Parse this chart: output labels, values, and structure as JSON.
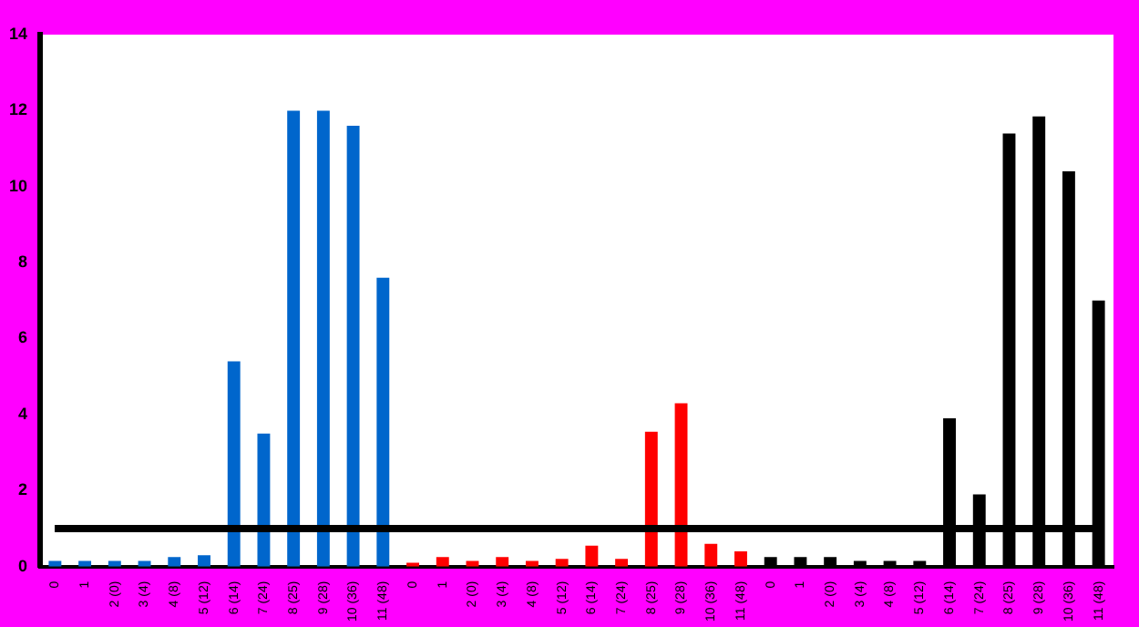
{
  "chart_data": {
    "type": "bar",
    "categories": [
      "0",
      "1",
      "2 (0)",
      "3 (4)",
      "4 (8)",
      "5 (12)",
      "6 (14)",
      "7 (24)",
      "8 (25)",
      "9 (28)",
      "10 (36)",
      "11 (48)",
      "0",
      "1",
      "2 (0)",
      "3 (4)",
      "4 (8)",
      "5 (12)",
      "6 (14)",
      "7 (24)",
      "8 (25)",
      "9 (28)",
      "10 (36)",
      "11 (48)",
      "0",
      "1",
      "2 (0)",
      "3 (4)",
      "4 (8)",
      "5 (12)",
      "6 (14)",
      "7 (24)",
      "8 (25)",
      "9 (28)",
      "10 (36)",
      "11 (48)"
    ],
    "values": [
      0.15,
      0.15,
      0.15,
      0.15,
      0.25,
      0.3,
      5.4,
      3.5,
      12,
      12,
      11.6,
      7.6,
      0.1,
      0.25,
      0.15,
      0.25,
      0.15,
      0.2,
      0.55,
      0.2,
      3.55,
      4.3,
      0.6,
      0.4,
      0.25,
      0.25,
      0.25,
      0.15,
      0.15,
      0.15,
      3.9,
      1.9,
      11.4,
      11.85,
      10.4,
      7
    ],
    "colors": [
      "#0066cc",
      "#0066cc",
      "#0066cc",
      "#0066cc",
      "#0066cc",
      "#0066cc",
      "#0066cc",
      "#0066cc",
      "#0066cc",
      "#0066cc",
      "#0066cc",
      "#0066cc",
      "#ff0000",
      "#ff0000",
      "#ff0000",
      "#ff0000",
      "#ff0000",
      "#ff0000",
      "#ff0000",
      "#ff0000",
      "#ff0000",
      "#ff0000",
      "#ff0000",
      "#ff0000",
      "#000000",
      "#000000",
      "#000000",
      "#000000",
      "#000000",
      "#000000",
      "#000000",
      "#000000",
      "#000000",
      "#000000",
      "#000000",
      "#000000"
    ],
    "ylim": [
      0,
      14
    ],
    "yticks": [
      0,
      2,
      4,
      6,
      8,
      10,
      12,
      14
    ],
    "grid": false,
    "legend": false,
    "ref_lines": [
      {
        "axis": "y",
        "value": 1,
        "color": "#000000"
      }
    ]
  }
}
